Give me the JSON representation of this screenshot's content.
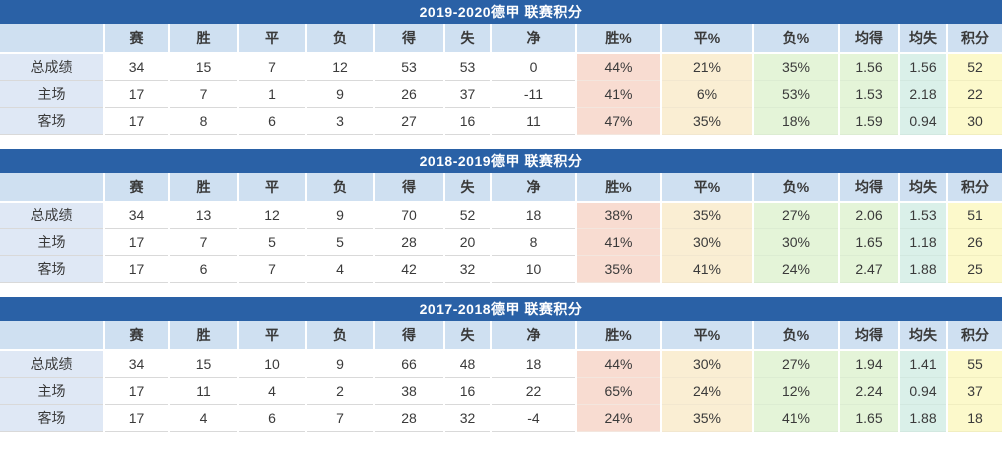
{
  "colors": {
    "title_bar": "#2a61a6",
    "header_bg": "#cfe0f1",
    "label_bg": "#dfe8f5",
    "win_pct_bg": "#f8dcd1",
    "draw_pct_bg": "#faeed3",
    "loss_pct_bg": "#e4f4d8",
    "avg_for_bg": "#e4f4d8",
    "avg_against_bg": "#daf0e9",
    "points_bg": "#fcf9cb",
    "text_color": "#3a3a3a"
  },
  "chart_data": [
    {
      "type": "table",
      "title": "2019-2020德甲 联赛积分",
      "columns": [
        "",
        "赛",
        "胜",
        "平",
        "负",
        "得",
        "失",
        "净",
        "胜%",
        "平%",
        "负%",
        "均得",
        "均失",
        "积分"
      ],
      "rows": [
        {
          "label": "总成绩",
          "values": [
            "34",
            "15",
            "7",
            "12",
            "53",
            "53",
            "0",
            "44%",
            "21%",
            "35%",
            "1.56",
            "1.56",
            "52"
          ]
        },
        {
          "label": "主场",
          "values": [
            "17",
            "7",
            "1",
            "9",
            "26",
            "37",
            "-11",
            "41%",
            "6%",
            "53%",
            "1.53",
            "2.18",
            "22"
          ]
        },
        {
          "label": "客场",
          "values": [
            "17",
            "8",
            "6",
            "3",
            "27",
            "16",
            "11",
            "47%",
            "35%",
            "18%",
            "1.59",
            "0.94",
            "30"
          ]
        }
      ]
    },
    {
      "type": "table",
      "title": "2018-2019德甲 联赛积分",
      "columns": [
        "",
        "赛",
        "胜",
        "平",
        "负",
        "得",
        "失",
        "净",
        "胜%",
        "平%",
        "负%",
        "均得",
        "均失",
        "积分"
      ],
      "rows": [
        {
          "label": "总成绩",
          "values": [
            "34",
            "13",
            "12",
            "9",
            "70",
            "52",
            "18",
            "38%",
            "35%",
            "27%",
            "2.06",
            "1.53",
            "51"
          ]
        },
        {
          "label": "主场",
          "values": [
            "17",
            "7",
            "5",
            "5",
            "28",
            "20",
            "8",
            "41%",
            "30%",
            "30%",
            "1.65",
            "1.18",
            "26"
          ]
        },
        {
          "label": "客场",
          "values": [
            "17",
            "6",
            "7",
            "4",
            "42",
            "32",
            "10",
            "35%",
            "41%",
            "24%",
            "2.47",
            "1.88",
            "25"
          ]
        }
      ]
    },
    {
      "type": "table",
      "title": "2017-2018德甲 联赛积分",
      "columns": [
        "",
        "赛",
        "胜",
        "平",
        "负",
        "得",
        "失",
        "净",
        "胜%",
        "平%",
        "负%",
        "均得",
        "均失",
        "积分"
      ],
      "rows": [
        {
          "label": "总成绩",
          "values": [
            "34",
            "15",
            "10",
            "9",
            "66",
            "48",
            "18",
            "44%",
            "30%",
            "27%",
            "1.94",
            "1.41",
            "55"
          ]
        },
        {
          "label": "主场",
          "values": [
            "17",
            "11",
            "4",
            "2",
            "38",
            "16",
            "22",
            "65%",
            "24%",
            "12%",
            "2.24",
            "0.94",
            "37"
          ]
        },
        {
          "label": "客场",
          "values": [
            "17",
            "4",
            "6",
            "7",
            "28",
            "32",
            "-4",
            "24%",
            "35%",
            "41%",
            "1.65",
            "1.88",
            "18"
          ]
        }
      ]
    }
  ]
}
